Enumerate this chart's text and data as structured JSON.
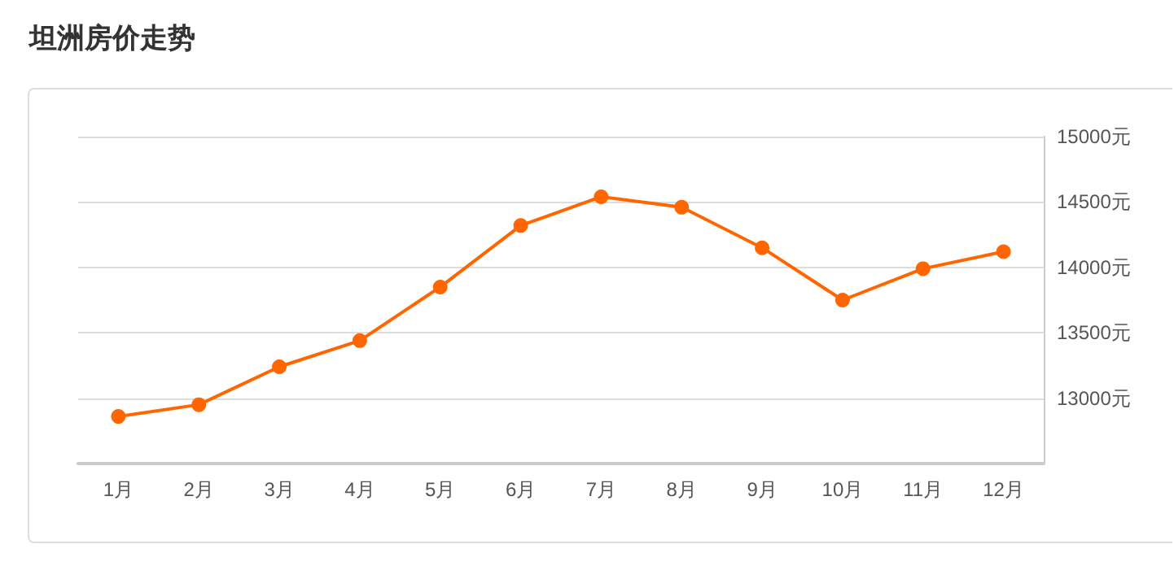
{
  "chart_data": {
    "type": "line",
    "title": "坦洲房价走势",
    "categories": [
      "1月",
      "2月",
      "3月",
      "4月",
      "5月",
      "6月",
      "7月",
      "8月",
      "9月",
      "10月",
      "11月",
      "12月"
    ],
    "series": [
      {
        "color": "#ff6600",
        "values": [
          12860,
          12950,
          13240,
          13440,
          13850,
          14320,
          14540,
          14460,
          14150,
          13750,
          13990,
          14120
        ]
      }
    ],
    "ylim": [
      12500,
      15000
    ],
    "yticks": [
      {
        "value": 13000,
        "label": "13000元"
      },
      {
        "value": 13500,
        "label": "13500元"
      },
      {
        "value": 14000,
        "label": "14000元"
      },
      {
        "value": 14500,
        "label": "14500元"
      },
      {
        "value": 15000,
        "label": "15000元"
      }
    ],
    "grid": "y",
    "marker": "circle",
    "line_style": "solid"
  }
}
